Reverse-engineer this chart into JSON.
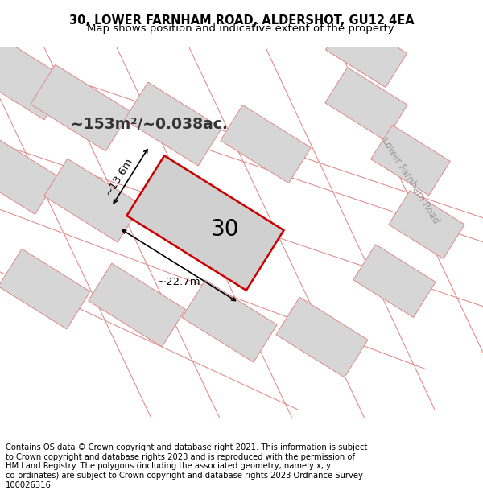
{
  "title": "30, LOWER FARNHAM ROAD, ALDERSHOT, GU12 4EA",
  "subtitle": "Map shows position and indicative extent of the property.",
  "footer": "Contains OS data © Crown copyright and database right 2021. This information is subject\nto Crown copyright and database rights 2023 and is reproduced with the permission of\nHM Land Registry. The polygons (including the associated geometry, namely x, y\nco-ordinates) are subject to Crown copyright and database rights 2023 Ordnance Survey\n100026316.",
  "area_text": "~153m²/~0.038ac.",
  "label_30": "30",
  "dim_width": "~22.7m",
  "dim_height": "~13.6m",
  "road_label": "Lower Farnham Road",
  "title_fontsize": 10.5,
  "subtitle_fontsize": 9.5,
  "footer_fontsize": 7.2,
  "map_bg": "#ffffff",
  "block_fill": "#d6d6d6",
  "block_edge": "#e08888",
  "road_line_color": "#e08888",
  "prop_fill": "#d0d0d0",
  "prop_edge": "#cc0000",
  "prop_edge_lw": 1.8,
  "text_color_area": "#333333",
  "road_label_color": "#999999",
  "annot_color": "#000000"
}
